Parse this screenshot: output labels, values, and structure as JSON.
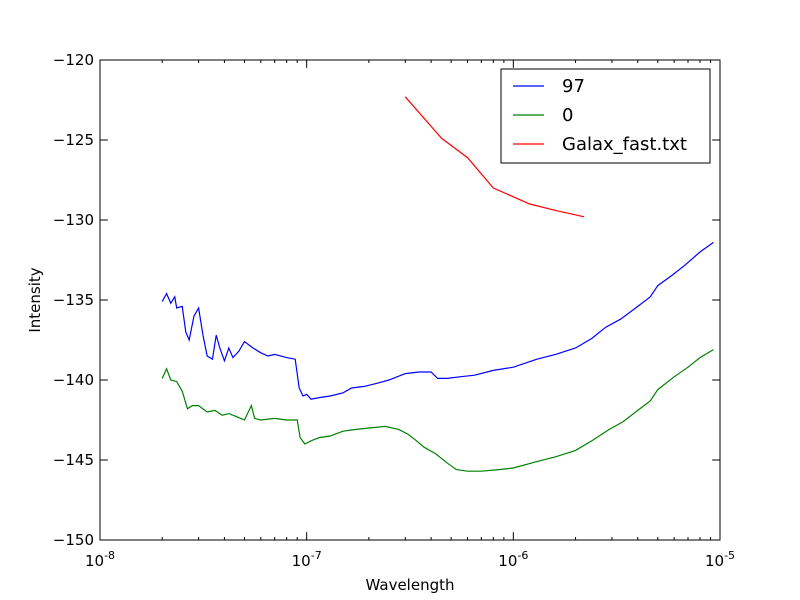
{
  "chart_data": {
    "type": "line",
    "title": "",
    "xlabel": "Wavelength",
    "ylabel": "Intensity",
    "xscale": "log",
    "xlim": [
      1e-08,
      1e-05
    ],
    "ylim": [
      -150,
      -120
    ],
    "legend": "top-right",
    "grid": false,
    "x_ticks": [
      {
        "value": 1e-08,
        "base": "10",
        "exp": "-8"
      },
      {
        "value": 1e-07,
        "base": "10",
        "exp": "-7"
      },
      {
        "value": 1e-06,
        "base": "10",
        "exp": "-6"
      },
      {
        "value": 1e-05,
        "base": "10",
        "exp": "-5"
      }
    ],
    "y_ticks": [
      {
        "value": -150,
        "label": "−150"
      },
      {
        "value": -145,
        "label": "−145"
      },
      {
        "value": -140,
        "label": "−140"
      },
      {
        "value": -135,
        "label": "−135"
      },
      {
        "value": -130,
        "label": "−130"
      },
      {
        "value": -125,
        "label": "−125"
      },
      {
        "value": -120,
        "label": "−120"
      }
    ],
    "series": [
      {
        "name": "97",
        "color": "#0000ff",
        "points": [
          [
            2e-08,
            -135.1
          ],
          [
            2.1e-08,
            -134.6
          ],
          [
            2.2e-08,
            -135.2
          ],
          [
            2.3e-08,
            -134.8
          ],
          [
            2.35e-08,
            -135.5
          ],
          [
            2.5e-08,
            -135.4
          ],
          [
            2.6e-08,
            -137.0
          ],
          [
            2.7e-08,
            -137.5
          ],
          [
            2.85e-08,
            -136.0
          ],
          [
            3e-08,
            -135.5
          ],
          [
            3.15e-08,
            -137.2
          ],
          [
            3.3e-08,
            -138.5
          ],
          [
            3.5e-08,
            -138.7
          ],
          [
            3.65e-08,
            -137.2
          ],
          [
            3.8e-08,
            -138.0
          ],
          [
            4e-08,
            -138.8
          ],
          [
            4.2e-08,
            -138.0
          ],
          [
            4.4e-08,
            -138.6
          ],
          [
            4.7e-08,
            -138.2
          ],
          [
            5e-08,
            -137.6
          ],
          [
            5.5e-08,
            -138.0
          ],
          [
            6e-08,
            -138.3
          ],
          [
            6.5e-08,
            -138.5
          ],
          [
            7e-08,
            -138.4
          ],
          [
            8e-08,
            -138.6
          ],
          [
            8.8e-08,
            -138.7
          ],
          [
            9.2e-08,
            -140.5
          ],
          [
            9.6e-08,
            -141.0
          ],
          [
            1e-07,
            -140.9
          ],
          [
            1.05e-07,
            -141.2
          ],
          [
            1.15e-07,
            -141.1
          ],
          [
            1.3e-07,
            -141.0
          ],
          [
            1.5e-07,
            -140.8
          ],
          [
            1.65e-07,
            -140.5
          ],
          [
            1.9e-07,
            -140.4
          ],
          [
            2.2e-07,
            -140.2
          ],
          [
            2.5e-07,
            -140.0
          ],
          [
            3e-07,
            -139.6
          ],
          [
            3.5e-07,
            -139.5
          ],
          [
            4e-07,
            -139.5
          ],
          [
            4.3e-07,
            -139.9
          ],
          [
            4.8e-07,
            -139.9
          ],
          [
            5.5e-07,
            -139.8
          ],
          [
            6.5e-07,
            -139.7
          ],
          [
            8e-07,
            -139.4
          ],
          [
            1e-06,
            -139.2
          ],
          [
            1.3e-06,
            -138.7
          ],
          [
            1.6e-06,
            -138.4
          ],
          [
            2e-06,
            -138.0
          ],
          [
            2.4e-06,
            -137.4
          ],
          [
            2.8e-06,
            -136.7
          ],
          [
            3.3e-06,
            -136.2
          ],
          [
            4e-06,
            -135.4
          ],
          [
            4.6e-06,
            -134.8
          ],
          [
            5e-06,
            -134.1
          ],
          [
            5.8e-06,
            -133.5
          ],
          [
            6.8e-06,
            -132.8
          ],
          [
            8e-06,
            -132.0
          ],
          [
            9.3e-06,
            -131.4
          ]
        ]
      },
      {
        "name": "0",
        "color": "#008000",
        "points": [
          [
            2e-08,
            -139.9
          ],
          [
            2.1e-08,
            -139.3
          ],
          [
            2.2e-08,
            -140.0
          ],
          [
            2.35e-08,
            -140.1
          ],
          [
            2.5e-08,
            -140.7
          ],
          [
            2.65e-08,
            -141.8
          ],
          [
            2.8e-08,
            -141.6
          ],
          [
            3e-08,
            -141.6
          ],
          [
            3.3e-08,
            -142.0
          ],
          [
            3.6e-08,
            -141.9
          ],
          [
            3.9e-08,
            -142.2
          ],
          [
            4.2e-08,
            -142.1
          ],
          [
            4.6e-08,
            -142.3
          ],
          [
            5e-08,
            -142.5
          ],
          [
            5.4e-08,
            -141.6
          ],
          [
            5.6e-08,
            -142.4
          ],
          [
            6e-08,
            -142.5
          ],
          [
            7e-08,
            -142.4
          ],
          [
            8e-08,
            -142.5
          ],
          [
            9e-08,
            -142.5
          ],
          [
            9.3e-08,
            -143.6
          ],
          [
            9.8e-08,
            -144.0
          ],
          [
            1.05e-07,
            -143.8
          ],
          [
            1.15e-07,
            -143.6
          ],
          [
            1.3e-07,
            -143.5
          ],
          [
            1.5e-07,
            -143.2
          ],
          [
            1.7e-07,
            -143.1
          ],
          [
            2e-07,
            -143.0
          ],
          [
            2.4e-07,
            -142.9
          ],
          [
            2.8e-07,
            -143.1
          ],
          [
            3.1e-07,
            -143.4
          ],
          [
            3.4e-07,
            -143.8
          ],
          [
            3.7e-07,
            -144.2
          ],
          [
            4.2e-07,
            -144.6
          ],
          [
            4.8e-07,
            -145.2
          ],
          [
            5.3e-07,
            -145.6
          ],
          [
            6e-07,
            -145.7
          ],
          [
            7e-07,
            -145.7
          ],
          [
            8.5e-07,
            -145.6
          ],
          [
            1e-06,
            -145.5
          ],
          [
            1.3e-06,
            -145.1
          ],
          [
            1.6e-06,
            -144.8
          ],
          [
            2e-06,
            -144.4
          ],
          [
            2.4e-06,
            -143.8
          ],
          [
            2.9e-06,
            -143.1
          ],
          [
            3.4e-06,
            -142.6
          ],
          [
            4e-06,
            -141.9
          ],
          [
            4.6e-06,
            -141.3
          ],
          [
            5e-06,
            -140.6
          ],
          [
            6e-06,
            -139.8
          ],
          [
            7e-06,
            -139.2
          ],
          [
            8e-06,
            -138.6
          ],
          [
            9.3e-06,
            -138.1
          ]
        ]
      },
      {
        "name": "Galax_fast.txt",
        "color": "#ff0000",
        "points": [
          [
            3e-07,
            -122.3
          ],
          [
            4.5e-07,
            -124.9
          ],
          [
            6e-07,
            -126.1
          ],
          [
            8e-07,
            -128.0
          ],
          [
            1.2e-06,
            -129.0
          ],
          [
            1.6e-06,
            -129.4
          ],
          [
            2.2e-06,
            -129.8
          ]
        ]
      }
    ]
  }
}
